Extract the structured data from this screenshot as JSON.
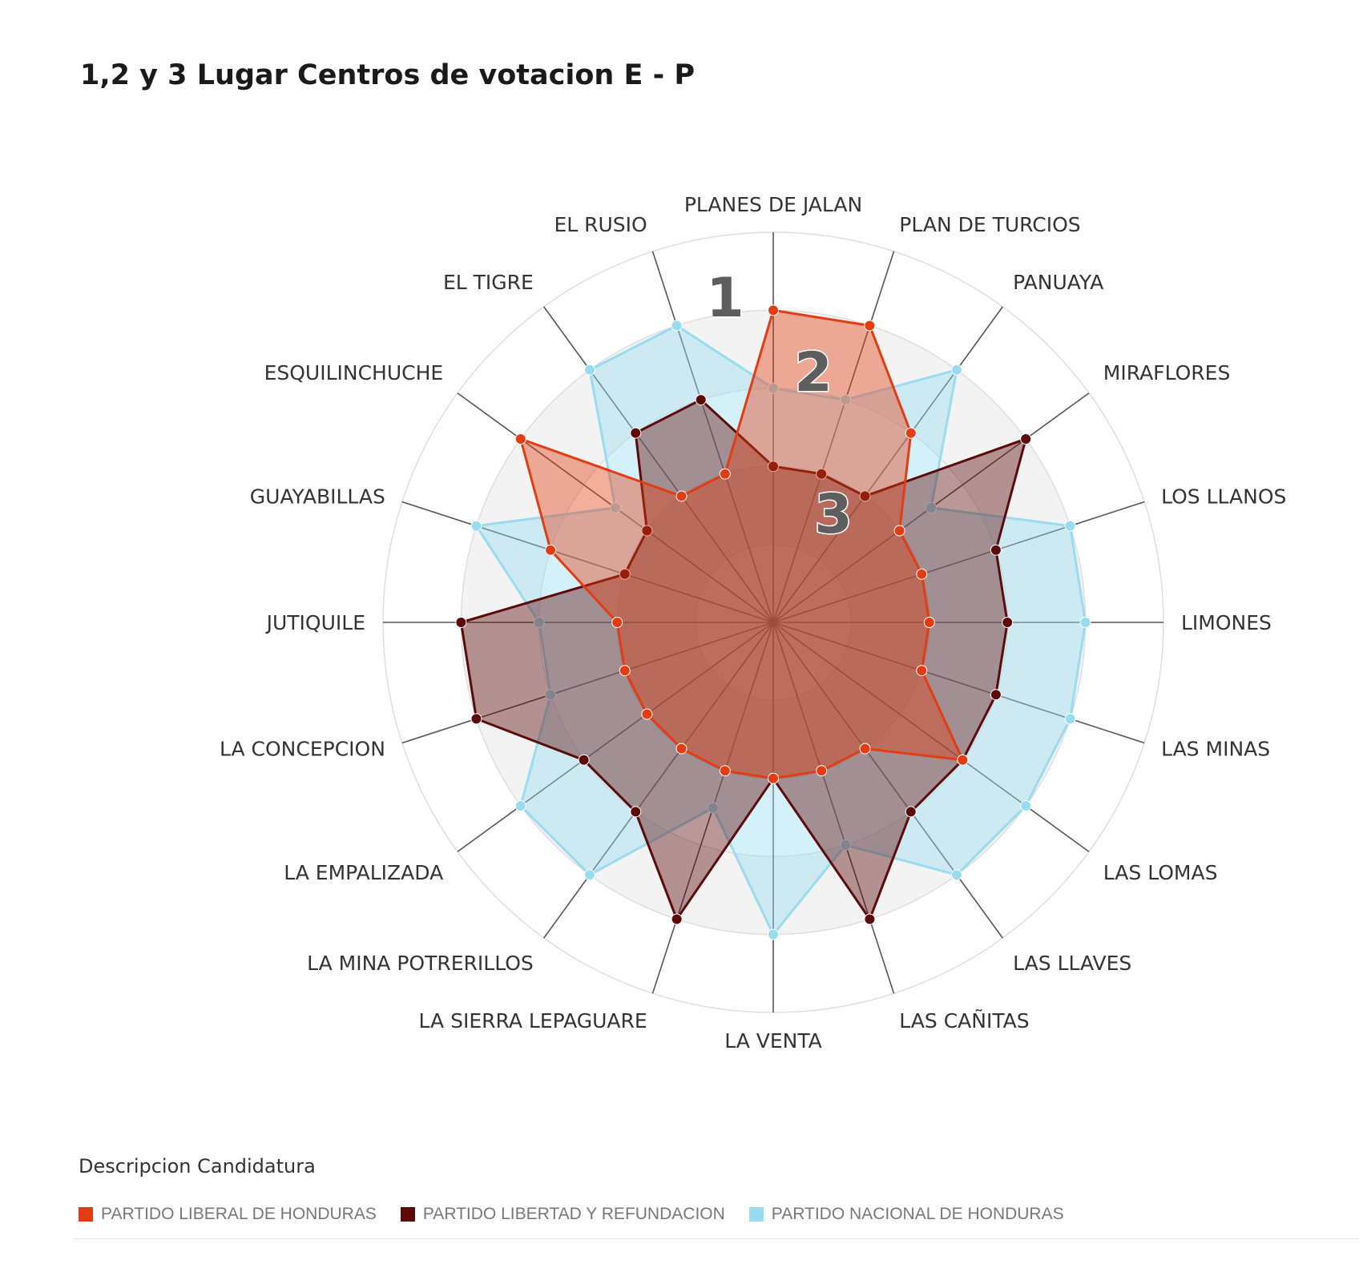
{
  "title": "1,2 y 3 Lugar Centros de votacion E - P",
  "legend": {
    "title": "Descripcion Candidatura",
    "items": [
      {
        "label": "PARTIDO LIBERAL DE HONDURAS",
        "color": "#e23d12"
      },
      {
        "label": "PARTIDO LIBERTAD Y REFUNDACION",
        "color": "#5c0a0a"
      },
      {
        "label": "PARTIDO NACIONAL DE HONDURAS",
        "color": "#99dcef"
      }
    ]
  },
  "chart_data": {
    "type": "radar",
    "title": "1,2 y 3 Lugar Centros de votacion E - P",
    "rmax": 5,
    "rings": [
      1,
      2,
      3,
      4,
      5
    ],
    "annotations": [
      "1",
      "2",
      "3"
    ],
    "categories": [
      "PLANES DE JALAN",
      "PLAN DE TURCIOS",
      "PANUAYA",
      "MIRAFLORES",
      "LOS LLANOS",
      "LIMONES",
      "LAS MINAS",
      "LAS LOMAS",
      "LAS LLAVES",
      "LAS CAÑITAS",
      "LA VENTA",
      "LA SIERRA LEPAGUARE",
      "LA MINA POTRERILLOS",
      "LA EMPALIZADA",
      "LA CONCEPCION",
      "JUTIQUILE",
      "GUAYABILLAS",
      "ESQUILINCHUCHE",
      "EL TIGRE",
      "EL RUSIO"
    ],
    "series": [
      {
        "name": "PARTIDO NACIONAL DE HONDURAS",
        "color": "#99dcef",
        "values": [
          3,
          3,
          4,
          2.5,
          4,
          4,
          4,
          4,
          4,
          3,
          4,
          2.5,
          4,
          4,
          3,
          3,
          4,
          2.5,
          4,
          4
        ]
      },
      {
        "name": "PARTIDO LIBERTAD Y REFUNDACION",
        "color": "#5c0a0a",
        "values": [
          2,
          2,
          2,
          4,
          3,
          3,
          3,
          3,
          3,
          4,
          2,
          4,
          3,
          3,
          4,
          4,
          2,
          2,
          3,
          3
        ]
      },
      {
        "name": "PARTIDO LIBERAL DE HONDURAS",
        "color": "#e23d12",
        "values": [
          4,
          4,
          3,
          2,
          2,
          2,
          2,
          3,
          2,
          2,
          2,
          2,
          2,
          2,
          2,
          2,
          3,
          4,
          2,
          2
        ]
      }
    ]
  }
}
